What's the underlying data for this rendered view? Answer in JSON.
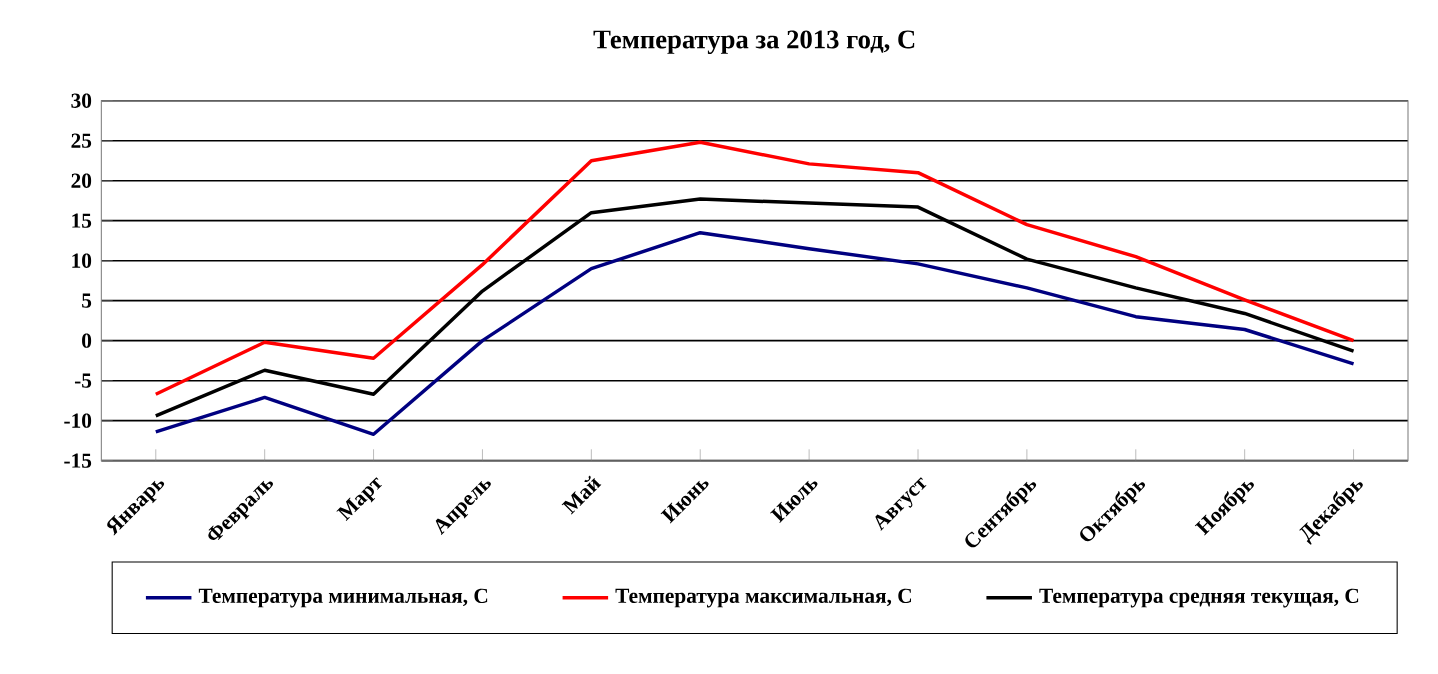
{
  "chart_data": {
    "type": "line",
    "title": "Температура за 2013 год,  С",
    "categories": [
      "Январь",
      "Февраль",
      "Март",
      "Апрель",
      "Май",
      "Июнь",
      "Июль",
      "Август",
      "Сентябрь",
      "Октябрь",
      "Ноябрь",
      "Декабрь"
    ],
    "series": [
      {
        "name": "Температура минимальная, С",
        "color": "#000080",
        "values": [
          -11.4,
          -7.1,
          -11.7,
          0,
          9,
          13.5,
          11.5,
          9.6,
          6.6,
          3,
          1.4,
          -2.9
        ]
      },
      {
        "name": "Температура максимальная, С",
        "color": "#ff0000",
        "values": [
          -6.7,
          -0.2,
          -2.2,
          9.5,
          22.5,
          24.8,
          22.1,
          21,
          14.5,
          10.5,
          5.1,
          0
        ]
      },
      {
        "name": "Температура средняя текущая,  С",
        "color": "#000000",
        "values": [
          -9.4,
          -3.7,
          -6.7,
          6.2,
          16,
          17.7,
          17.2,
          16.7,
          10.2,
          6.6,
          3.4,
          -1.3
        ]
      }
    ],
    "ylim": [
      -15,
      30
    ],
    "yticks": [
      -15,
      -10,
      -5,
      0,
      5,
      10,
      15,
      20,
      25,
      30
    ],
    "grid": "y",
    "legend": "bottom",
    "marker": "none",
    "line_style": "solid"
  }
}
